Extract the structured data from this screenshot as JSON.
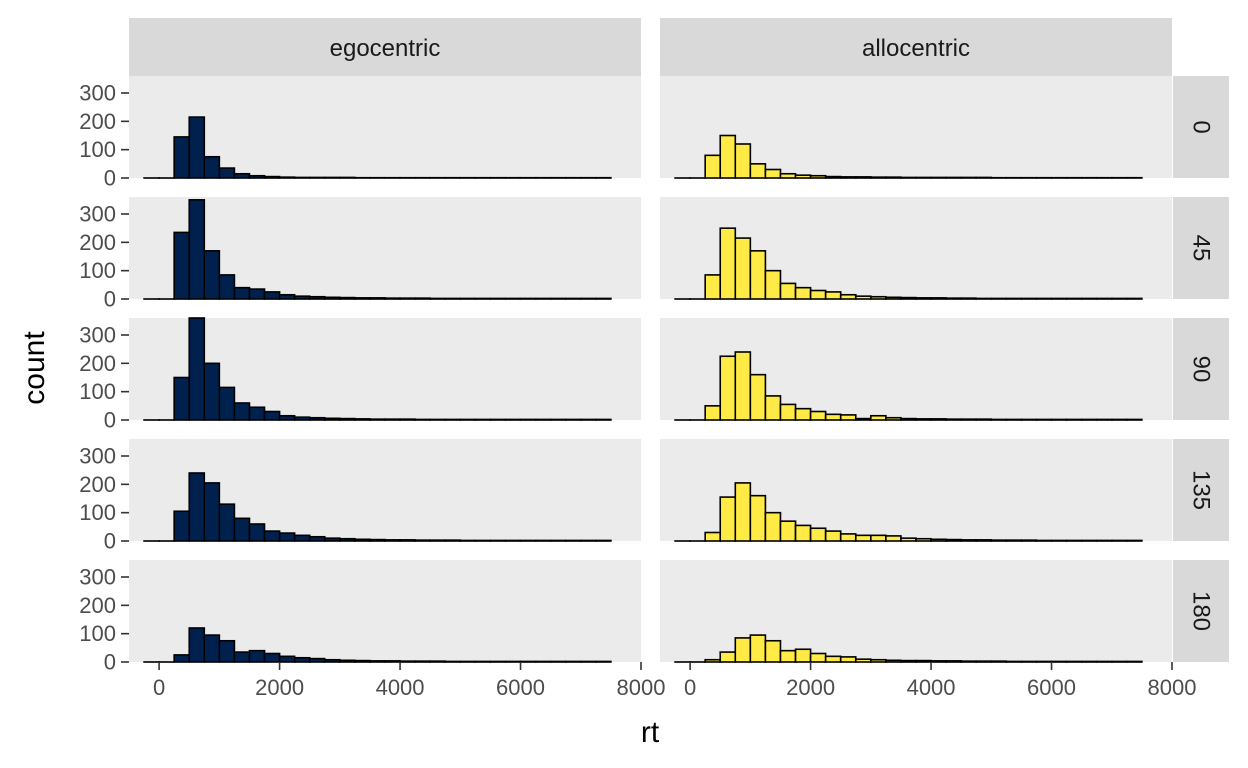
{
  "chart_data": {
    "type": "bar",
    "subtype": "faceted-histogram",
    "xlabel": "rt",
    "ylabel": "count",
    "xlim": [
      -500,
      8000
    ],
    "ylim": [
      0,
      360
    ],
    "x_ticks": [
      0,
      2000,
      4000,
      6000,
      8000
    ],
    "x_tick_labels": [
      "0",
      "2000",
      "4000",
      "6000",
      "8000"
    ],
    "y_ticks": [
      0,
      100,
      200,
      300
    ],
    "y_tick_labels": [
      "0",
      "100",
      "200",
      "300"
    ],
    "bin_width": 250,
    "bin_centers": [
      -125,
      125,
      375,
      625,
      875,
      1125,
      1375,
      1625,
      1875,
      2125,
      2375,
      2625,
      2875,
      3125,
      3375,
      3625,
      3875,
      4125,
      4375,
      4625,
      4875,
      5125,
      5375,
      5625,
      5875,
      6125,
      6375,
      6625,
      6875,
      7125,
      7375
    ],
    "columns": [
      "egocentric",
      "allocentric"
    ],
    "rows": [
      "0",
      "45",
      "90",
      "135",
      "180"
    ],
    "colors": {
      "egocentric": "#00204d",
      "allocentric": "#ffea46"
    },
    "grid": false,
    "legend": "none",
    "panels": [
      {
        "column": "egocentric",
        "row": "0",
        "counts": [
          0,
          0,
          145,
          215,
          75,
          35,
          15,
          8,
          5,
          3,
          2,
          2,
          2,
          2,
          1,
          1,
          1,
          1,
          1,
          1,
          1,
          1,
          1,
          1,
          1,
          1,
          1,
          1,
          1,
          1,
          1
        ]
      },
      {
        "column": "allocentric",
        "row": "0",
        "counts": [
          0,
          0,
          80,
          150,
          120,
          50,
          30,
          15,
          10,
          8,
          5,
          4,
          4,
          3,
          3,
          2,
          2,
          2,
          2,
          2,
          2,
          1,
          1,
          1,
          1,
          1,
          1,
          1,
          1,
          1,
          1
        ]
      },
      {
        "column": "egocentric",
        "row": "45",
        "counts": [
          0,
          0,
          235,
          350,
          170,
          85,
          40,
          35,
          25,
          15,
          10,
          8,
          6,
          5,
          4,
          4,
          3,
          3,
          3,
          2,
          2,
          2,
          2,
          2,
          2,
          2,
          2,
          2,
          2,
          2,
          2
        ]
      },
      {
        "column": "allocentric",
        "row": "45",
        "counts": [
          0,
          0,
          85,
          250,
          215,
          170,
          100,
          55,
          40,
          30,
          25,
          15,
          10,
          8,
          6,
          5,
          4,
          4,
          3,
          3,
          2,
          2,
          2,
          2,
          2,
          2,
          2,
          2,
          2,
          2,
          2
        ]
      },
      {
        "column": "egocentric",
        "row": "90",
        "counts": [
          0,
          0,
          150,
          360,
          200,
          115,
          60,
          45,
          30,
          15,
          10,
          8,
          6,
          5,
          4,
          3,
          3,
          3,
          2,
          2,
          2,
          2,
          2,
          2,
          2,
          2,
          2,
          2,
          2,
          2,
          2
        ]
      },
      {
        "column": "allocentric",
        "row": "90",
        "counts": [
          0,
          0,
          50,
          225,
          240,
          160,
          85,
          55,
          40,
          30,
          20,
          18,
          5,
          15,
          8,
          5,
          4,
          4,
          3,
          3,
          3,
          2,
          2,
          2,
          2,
          2,
          2,
          2,
          2,
          2,
          2
        ]
      },
      {
        "column": "egocentric",
        "row": "135",
        "counts": [
          0,
          0,
          105,
          240,
          205,
          130,
          80,
          60,
          35,
          28,
          20,
          15,
          10,
          8,
          6,
          5,
          4,
          4,
          3,
          3,
          3,
          2,
          2,
          2,
          2,
          2,
          2,
          2,
          2,
          2,
          2
        ]
      },
      {
        "column": "allocentric",
        "row": "135",
        "counts": [
          0,
          0,
          30,
          155,
          205,
          160,
          100,
          70,
          55,
          45,
          35,
          25,
          20,
          20,
          18,
          10,
          8,
          6,
          5,
          4,
          4,
          3,
          3,
          3,
          2,
          2,
          2,
          2,
          2,
          2,
          2
        ]
      },
      {
        "column": "egocentric",
        "row": "180",
        "counts": [
          0,
          0,
          25,
          120,
          95,
          75,
          35,
          40,
          30,
          20,
          15,
          12,
          8,
          6,
          5,
          4,
          4,
          3,
          3,
          3,
          2,
          2,
          2,
          2,
          2,
          2,
          2,
          2,
          2,
          2,
          2
        ]
      },
      {
        "column": "allocentric",
        "row": "180",
        "counts": [
          0,
          0,
          8,
          35,
          85,
          95,
          75,
          40,
          45,
          30,
          20,
          18,
          10,
          8,
          6,
          5,
          5,
          4,
          4,
          3,
          3,
          3,
          2,
          2,
          2,
          2,
          2,
          2,
          2,
          2,
          2
        ]
      }
    ]
  }
}
